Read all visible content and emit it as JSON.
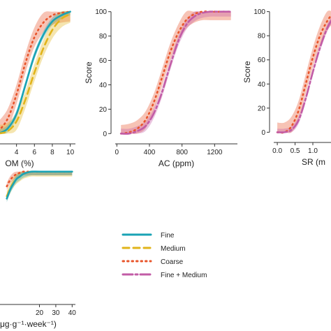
{
  "colors": {
    "fine": "#1aa3b5",
    "medium": "#e1b41a",
    "coarse": "#e8542a",
    "fine_medium": "#c25ca6",
    "axis": "#333333"
  },
  "legend": [
    {
      "key": "fine",
      "label": "Fine",
      "dash": "none"
    },
    {
      "key": "medium",
      "label": "Medium",
      "dash": "9,6"
    },
    {
      "key": "coarse",
      "label": "Coarse",
      "dash": "1.5,5"
    },
    {
      "key": "fine_medium",
      "label": "Fine + Medium",
      "dash": "14,4,3,4"
    }
  ],
  "chart_data": [
    {
      "id": "om",
      "type": "line",
      "xlabel": "OM (%)",
      "ylabel": "",
      "xticks": [
        4,
        6,
        8,
        10
      ],
      "yticks": [],
      "xlim": [
        2,
        10.5
      ],
      "ylim": [
        -5,
        105
      ],
      "series": [
        {
          "key": "coarse",
          "x": [
            2,
            3,
            4,
            5,
            6,
            7,
            8,
            9,
            10
          ],
          "y": [
            2,
            12,
            32,
            58,
            79,
            91,
            97,
            99,
            100
          ],
          "band": 8
        },
        {
          "key": "fine",
          "x": [
            2,
            3,
            4,
            5,
            6,
            7,
            8,
            9,
            10
          ],
          "y": [
            0,
            4,
            16,
            40,
            64,
            81,
            92,
            97,
            100
          ],
          "band": 3
        },
        {
          "key": "medium",
          "x": [
            2,
            3,
            4,
            5,
            6,
            7,
            8,
            9,
            10
          ],
          "y": [
            0,
            2,
            10,
            28,
            50,
            70,
            85,
            94,
            98
          ],
          "band": 7
        }
      ]
    },
    {
      "id": "ac",
      "type": "line",
      "xlabel": "AC (ppm)",
      "ylabel": "Score",
      "xticks": [
        0,
        400,
        800,
        1200
      ],
      "yticks": [
        0,
        20,
        40,
        60,
        80,
        100
      ],
      "xlim": [
        -20,
        1480
      ],
      "ylim": [
        -5,
        105
      ],
      "series": [
        {
          "key": "coarse",
          "x": [
            50,
            150,
            250,
            350,
            450,
            550,
            650,
            750,
            850,
            950,
            1050,
            1150,
            1250,
            1400
          ],
          "y": [
            0,
            1,
            4,
            11,
            25,
            45,
            66,
            82,
            93,
            98,
            100,
            100,
            100,
            100
          ],
          "band": 7
        },
        {
          "key": "fine_medium",
          "x": [
            50,
            150,
            250,
            350,
            450,
            550,
            650,
            750,
            850,
            950,
            1050,
            1150,
            1250,
            1400
          ],
          "y": [
            0,
            0,
            2,
            6,
            16,
            33,
            55,
            75,
            89,
            96,
            99,
            100,
            100,
            100
          ],
          "band": 4
        }
      ]
    },
    {
      "id": "sr",
      "type": "line",
      "xlabel": "SR (m",
      "ylabel": "Score",
      "xticks": [
        0.0,
        0.5,
        1.0
      ],
      "xticklabels": [
        "0.0",
        "0.5",
        "1.0"
      ],
      "yticks": [
        0,
        20,
        40,
        60,
        80,
        100
      ],
      "xlim": [
        -0.1,
        1.55
      ],
      "ylim": [
        -5,
        105
      ],
      "series": [
        {
          "key": "coarse",
          "x": [
            0.0,
            0.2,
            0.4,
            0.6,
            0.8,
            1.0,
            1.2,
            1.4,
            1.55
          ],
          "y": [
            0,
            0,
            5,
            18,
            40,
            62,
            80,
            92,
            98
          ],
          "band": 8
        },
        {
          "key": "fine_medium",
          "x": [
            0.0,
            0.2,
            0.4,
            0.6,
            0.8,
            1.0,
            1.2,
            1.4,
            1.55
          ],
          "y": [
            0,
            0,
            2,
            10,
            28,
            50,
            70,
            86,
            94
          ],
          "band": 3
        }
      ]
    },
    {
      "id": "resp",
      "type": "line",
      "xlabel": "μg·g⁻¹·week⁻¹)",
      "ylabel": "",
      "xticks": [
        20,
        30,
        40
      ],
      "yticks": [],
      "xlim": [
        -5,
        42
      ],
      "ylim": [
        -5,
        105
      ],
      "series": [
        {
          "key": "coarse",
          "x": [
            0,
            2,
            4,
            6,
            8,
            10,
            12,
            15,
            20,
            30,
            40
          ],
          "y": [
            88,
            93,
            96,
            98,
            99,
            100,
            100,
            100,
            100,
            100,
            100
          ],
          "band": 3
        },
        {
          "key": "medium",
          "x": [
            0,
            2,
            4,
            6,
            8,
            10,
            12,
            15,
            20,
            30,
            40
          ],
          "y": [
            80,
            86,
            91,
            94,
            96,
            98,
            99,
            100,
            100,
            100,
            100
          ],
          "band": 4
        },
        {
          "key": "fine",
          "x": [
            0,
            2,
            4,
            6,
            8,
            10,
            12,
            15,
            20,
            30,
            40
          ],
          "y": [
            78,
            85,
            90,
            94,
            96,
            98,
            99,
            100,
            100,
            100,
            100
          ],
          "band": 3
        }
      ]
    }
  ]
}
